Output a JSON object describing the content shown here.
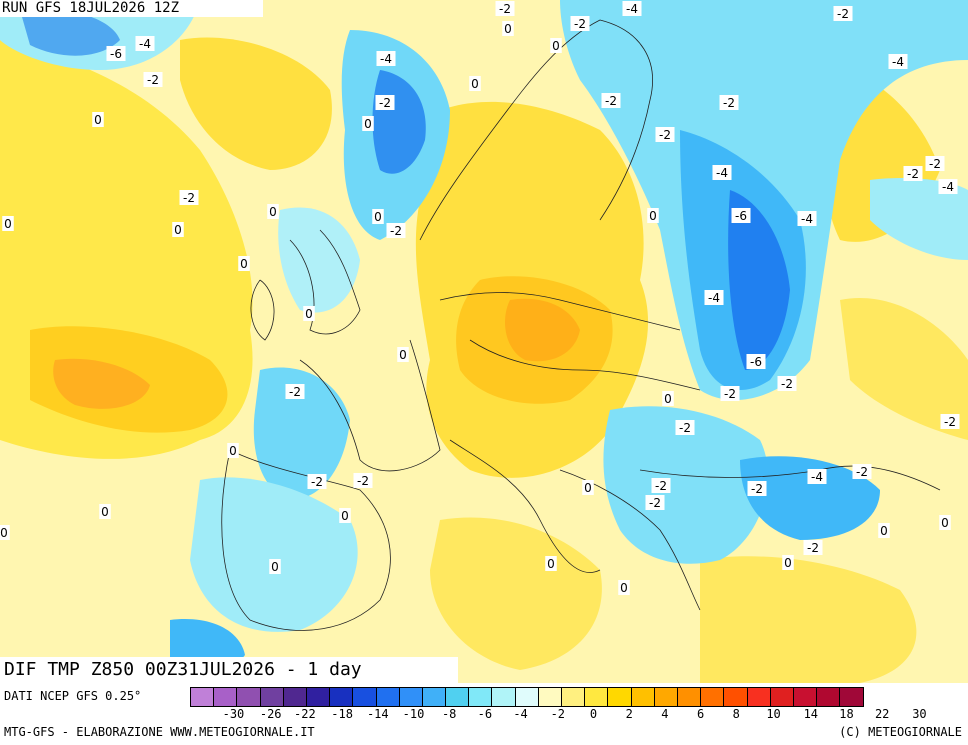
{
  "header": {
    "run_label": "RUN GFS 18JUL2026 12Z"
  },
  "title": {
    "text": "DIF TMP Z850 00Z31JUL2026 - 1 day"
  },
  "footer": {
    "data_source": "DATI NCEP GFS 0.25°",
    "credit_left": "MTG-GFS - ELABORAZIONE WWW.METEOGIORNALE.IT",
    "credit_right": "(C) METEOGIORNALE"
  },
  "colorbar": {
    "colors": [
      "#c080d8",
      "#a860c8",
      "#9050b0",
      "#7040a0",
      "#502890",
      "#3020a0",
      "#1830c0",
      "#1850e0",
      "#2070f0",
      "#3090f8",
      "#40b0f8",
      "#50d0f0",
      "#80e8f8",
      "#b0f4f8",
      "#e0fcfc",
      "#fffac0",
      "#fff080",
      "#ffe840",
      "#ffd800",
      "#ffc000",
      "#ffa800",
      "#ff9000",
      "#ff7000",
      "#ff5000",
      "#f83020",
      "#e02020",
      "#c81030",
      "#b00830",
      "#a00838"
    ],
    "tick_labels": [
      "-30",
      "-26",
      "-22",
      "-18",
      "-14",
      "-10",
      "-8",
      "-6",
      "-4",
      "-2",
      "0",
      "2",
      "4",
      "6",
      "8",
      "10",
      "14",
      "18",
      "22",
      "30"
    ]
  },
  "map_labels": [
    {
      "text": "-2"
    },
    {
      "text": "-4"
    },
    {
      "text": "-2"
    },
    {
      "text": "-2"
    },
    {
      "text": "-6"
    },
    {
      "text": "-4"
    },
    {
      "text": "0"
    },
    {
      "text": "0"
    },
    {
      "text": "-2"
    },
    {
      "text": "-4"
    },
    {
      "text": "0"
    },
    {
      "text": "-2"
    },
    {
      "text": "-2"
    },
    {
      "text": "-4"
    },
    {
      "text": "0"
    },
    {
      "text": "-2"
    },
    {
      "text": "-2"
    },
    {
      "text": "-2"
    },
    {
      "text": "-2"
    },
    {
      "text": "-4"
    },
    {
      "text": "0"
    },
    {
      "text": "-2"
    },
    {
      "text": "0"
    },
    {
      "text": "-6"
    },
    {
      "text": "-4"
    },
    {
      "text": "0"
    },
    {
      "text": "0"
    },
    {
      "text": "-2"
    },
    {
      "text": "0"
    },
    {
      "text": "0"
    },
    {
      "text": "-4"
    },
    {
      "text": "0"
    },
    {
      "text": "0"
    },
    {
      "text": "-6"
    },
    {
      "text": "-2"
    },
    {
      "text": "-2"
    },
    {
      "text": "-4"
    },
    {
      "text": "0"
    },
    {
      "text": "-2"
    },
    {
      "text": "-2"
    },
    {
      "text": "0"
    },
    {
      "text": "-2"
    },
    {
      "text": "-2"
    },
    {
      "text": "0"
    },
    {
      "text": "-2"
    },
    {
      "text": "-2"
    },
    {
      "text": "-4"
    },
    {
      "text": "-2"
    },
    {
      "text": "0"
    },
    {
      "text": "0"
    },
    {
      "text": "0"
    },
    {
      "text": "0"
    },
    {
      "text": "-2"
    },
    {
      "text": "0"
    },
    {
      "text": "-2"
    },
    {
      "text": "0"
    },
    {
      "text": "0"
    },
    {
      "text": "0"
    },
    {
      "text": "-2"
    },
    {
      "text": "0"
    },
    {
      "text": "0"
    }
  ]
}
